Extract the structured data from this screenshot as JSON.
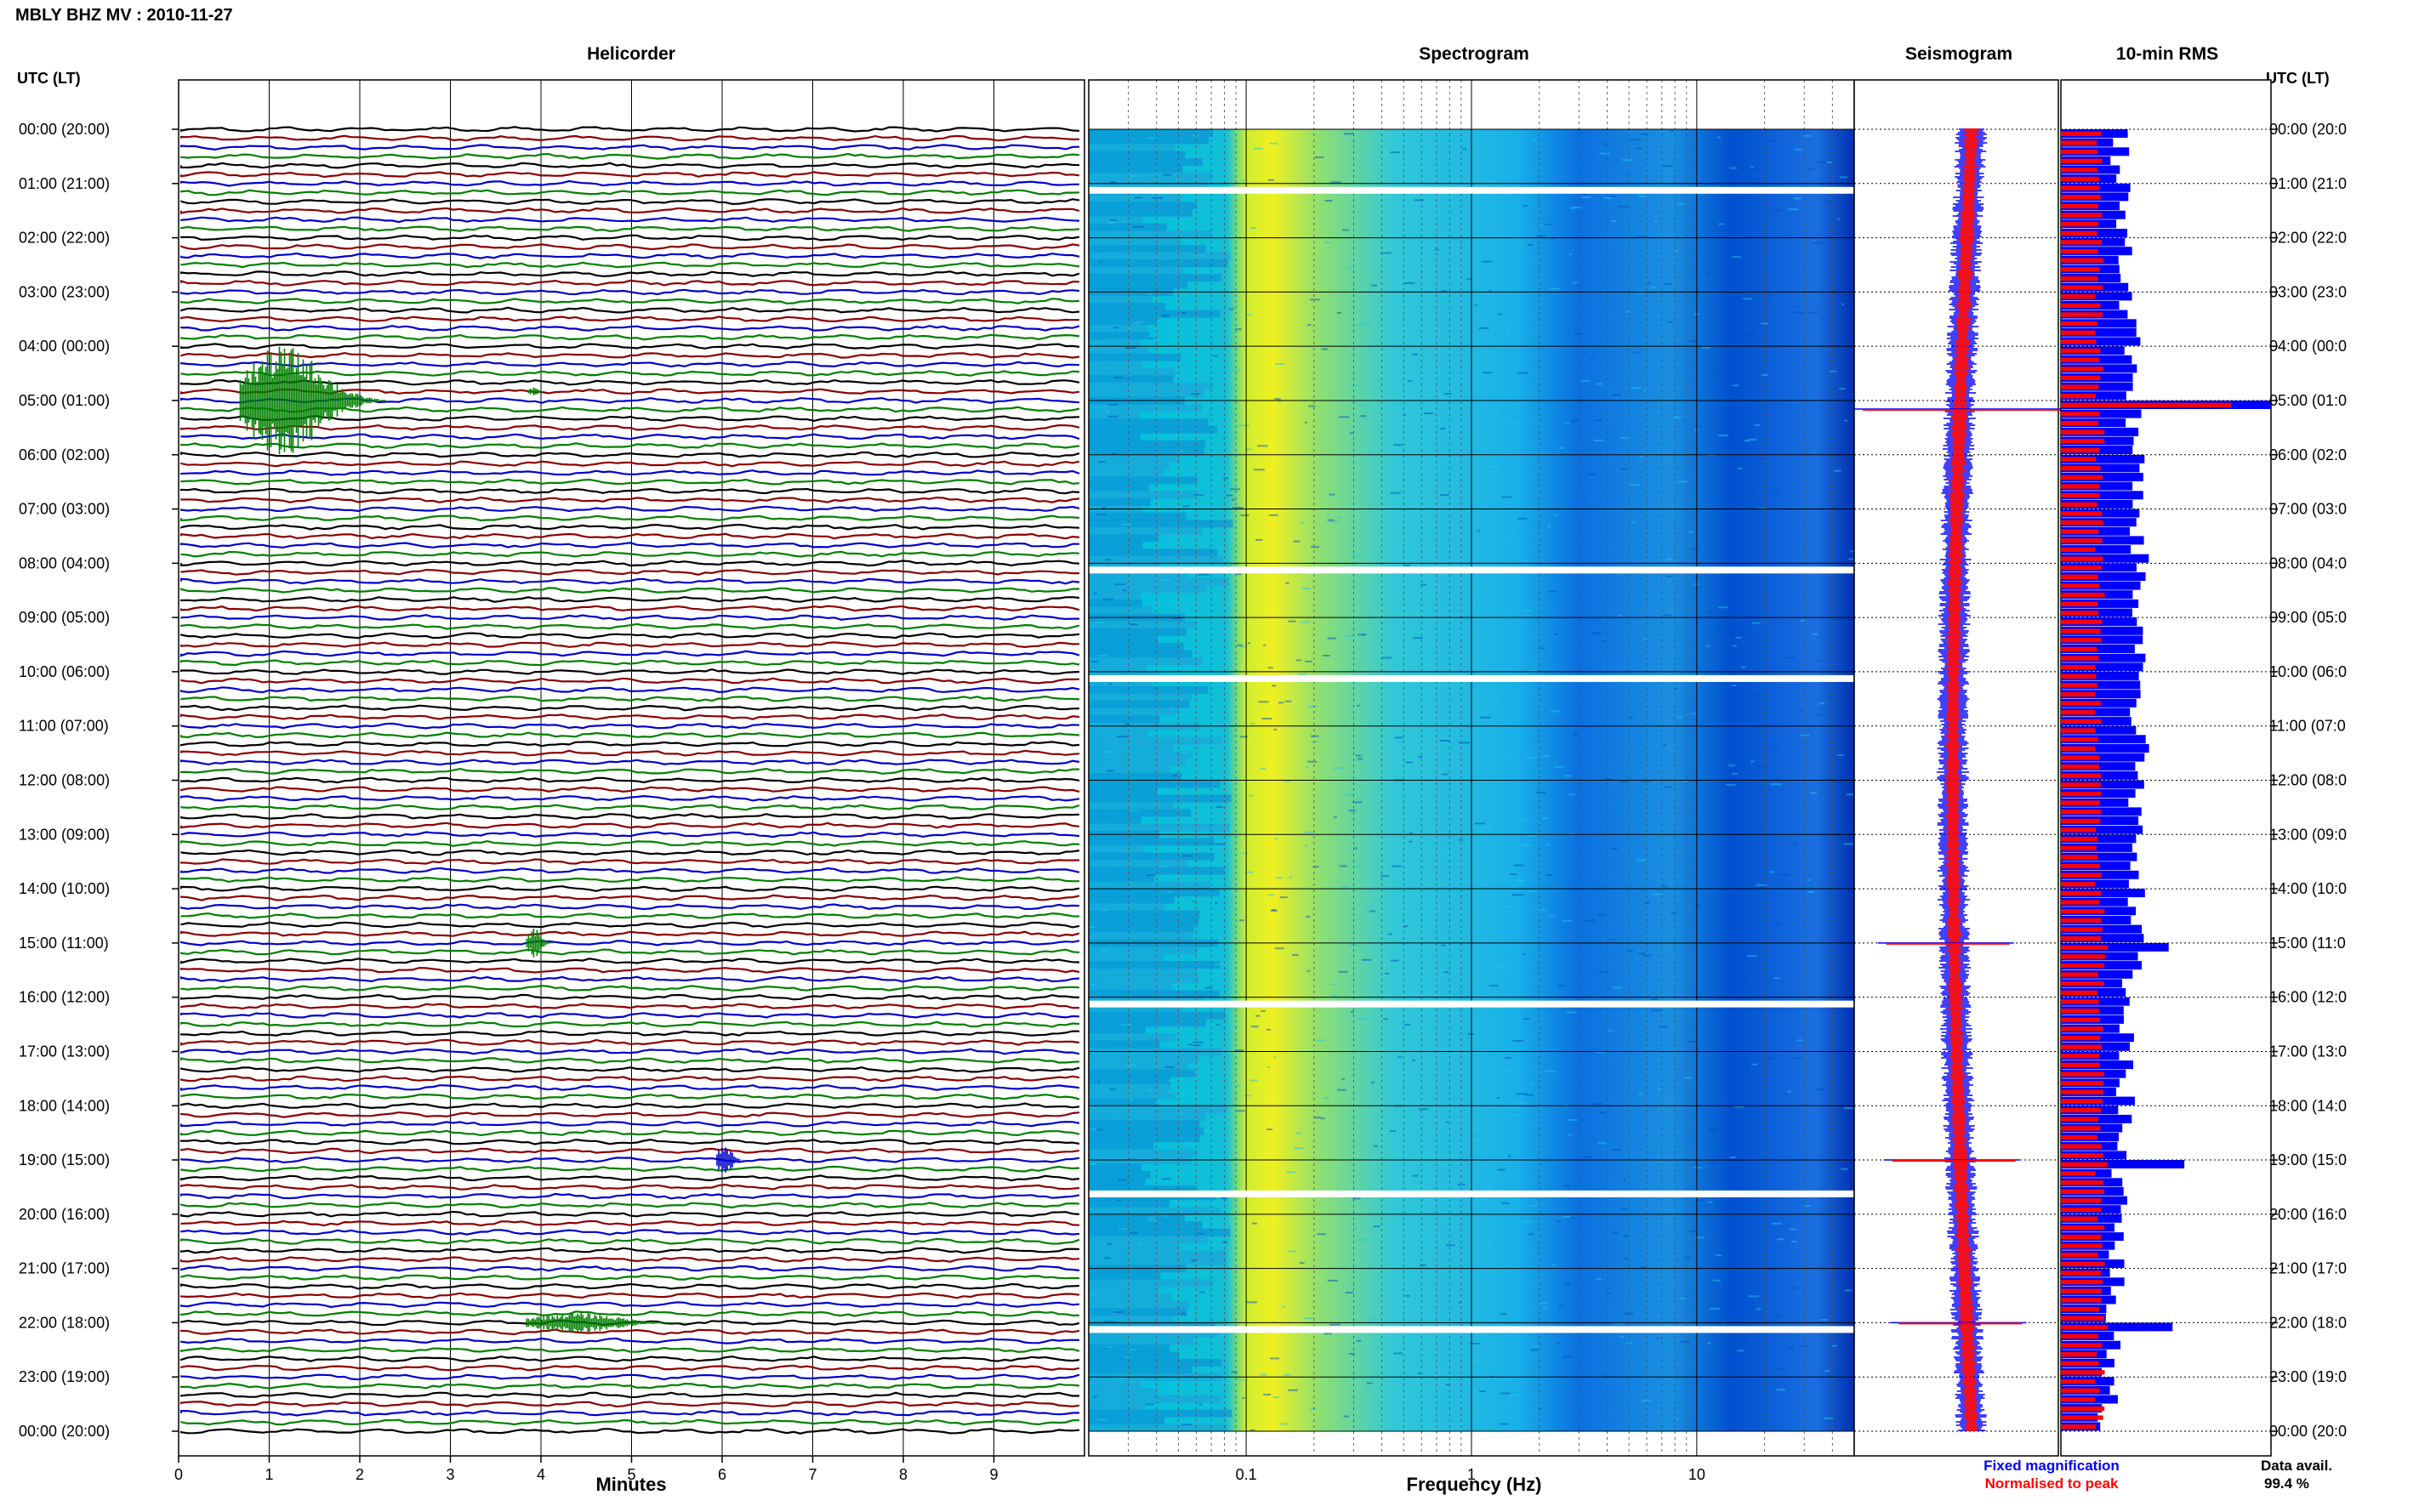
{
  "header": {
    "station_title": "MBLY BHZ MV : 2010-11-27",
    "utc_label_left": "UTC (LT)",
    "utc_label_right": "UTC (LT)"
  },
  "panels": {
    "helicorder": "Helicorder",
    "spectrogram": "Spectrogram",
    "seismogram": "Seismogram",
    "rms": "10-min RMS"
  },
  "time_labels": [
    "00:00 (20:00)",
    "01:00 (21:00)",
    "02:00 (22:00)",
    "03:00 (23:00)",
    "04:00 (00:00)",
    "05:00 (01:00)",
    "06:00 (02:00)",
    "07:00 (03:00)",
    "08:00 (04:00)",
    "09:00 (05:00)",
    "10:00 (06:00)",
    "11:00 (07:00)",
    "12:00 (08:00)",
    "13:00 (09:00)",
    "14:00 (10:00)",
    "15:00 (11:00)",
    "16:00 (12:00)",
    "17:00 (13:00)",
    "18:00 (14:00)",
    "19:00 (15:00)",
    "20:00 (16:00)",
    "21:00 (17:00)",
    "22:00 (18:00)",
    "23:00 (19:00)",
    "00:00 (20:00)"
  ],
  "right_time_labels": [
    "00:00 (20:0",
    "01:00 (21:0",
    "02:00 (22:0",
    "03:00 (23:0",
    "04:00 (00:0",
    "05:00 (01:0",
    "06:00 (02:0",
    "07:00 (03:0",
    "08:00 (04:0",
    "09:00 (05:0",
    "10:00 (06:0",
    "11:00 (07:0",
    "12:00 (08:0",
    "13:00 (09:0",
    "14:00 (10:0",
    "15:00 (11:0",
    "16:00 (12:0",
    "17:00 (13:0",
    "18:00 (14:0",
    "19:00 (15:0",
    "20:00 (16:0",
    "21:00 (17:0",
    "22:00 (18:0",
    "23:00 (19:0",
    "00:00 (20:0"
  ],
  "footer": {
    "minutes_label": "Minutes",
    "frequency_label": "Frequency (Hz)",
    "legend_fixed": "Fixed magnification",
    "legend_normalised": "Normalised to peak",
    "data_avail_label": "Data avail.",
    "data_avail_value": "99.4 %"
  },
  "colors": {
    "trace_cycle": [
      "#000000",
      "#8b0000",
      "#0000cd",
      "#008000"
    ],
    "fixed_magnification": "#0000ff",
    "normalised_to_peak": "#ff0000",
    "spectro_low": "#00008b",
    "spectro_high": "#ffff00"
  },
  "chart_data": [
    {
      "type": "line",
      "title": "Helicorder",
      "xlabel": "Minutes",
      "x_ticks": [
        0,
        1,
        2,
        3,
        4,
        5,
        6,
        7,
        8,
        9
      ],
      "xlim": [
        0,
        10
      ],
      "traces_per_hour": 6,
      "events": [
        {
          "time": "05:00",
          "minute": 1.0,
          "color": "green",
          "amplitude": "large"
        },
        {
          "time": "04:50",
          "minute": 3.9,
          "color": "green",
          "amplitude": "small"
        },
        {
          "time": "15:00",
          "minute": 3.9,
          "color": "green",
          "amplitude": "medium"
        },
        {
          "time": "19:00",
          "minute": 6.0,
          "color": "blue",
          "amplitude": "medium"
        },
        {
          "time": "22:00",
          "minute": 4.2,
          "color": "green",
          "amplitude": "long"
        }
      ]
    },
    {
      "type": "heatmap",
      "title": "Spectrogram",
      "xlabel": "Frequency (Hz)",
      "x_scale": "log",
      "x_ticks": [
        0.1,
        1,
        10
      ],
      "x_tick_labels": [
        "0.1",
        "1",
        "10"
      ],
      "xlim": [
        0.02,
        50
      ],
      "peak_band_hz": [
        0.13,
        0.3
      ],
      "data_gaps": [
        "01:00",
        "08:00",
        "10:00",
        "16:00",
        "19:30",
        "22:00"
      ]
    },
    {
      "type": "line",
      "title": "Seismogram",
      "series": [
        {
          "name": "Fixed magnification",
          "color": "#0000ff"
        },
        {
          "name": "Normalised to peak",
          "color": "#ff0000"
        }
      ],
      "spikes": [
        "05:00",
        "15:00",
        "19:00",
        "22:00"
      ]
    },
    {
      "type": "bar",
      "title": "10-min RMS",
      "orientation": "horizontal",
      "series": [
        {
          "name": "Fixed magnification",
          "color": "#0000ff"
        },
        {
          "name": "Normalised to peak",
          "color": "#ff0000"
        }
      ],
      "peaks": [
        "05:00",
        "15:00",
        "19:00",
        "22:00"
      ]
    }
  ]
}
